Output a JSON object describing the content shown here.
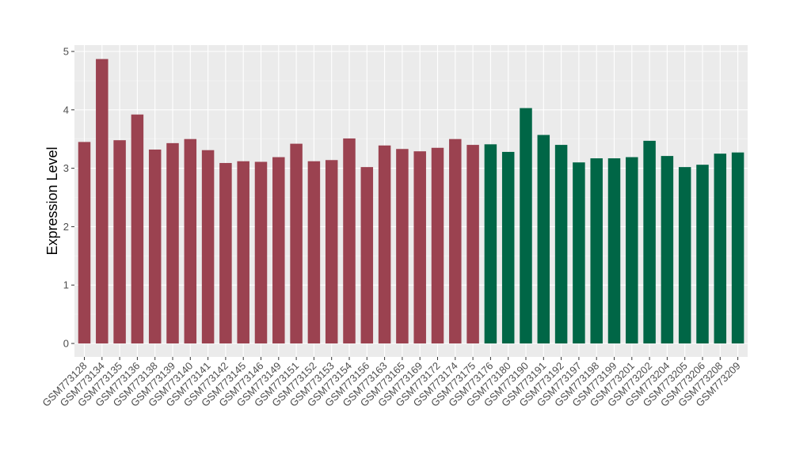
{
  "chart_data": {
    "type": "bar",
    "title": "",
    "xlabel": "",
    "ylabel": "Expression Level",
    "ylim": [
      0,
      5
    ],
    "yticks": [
      0,
      1,
      2,
      3,
      4,
      5
    ],
    "grid": true,
    "legend": "none",
    "categories": [
      "GSM773128",
      "GSM773134",
      "GSM773135",
      "GSM773136",
      "GSM773138",
      "GSM773139",
      "GSM773140",
      "GSM773141",
      "GSM773142",
      "GSM773145",
      "GSM773146",
      "GSM773149",
      "GSM773151",
      "GSM773152",
      "GSM773153",
      "GSM773154",
      "GSM773156",
      "GSM773163",
      "GSM773165",
      "GSM773169",
      "GSM773172",
      "GSM773174",
      "GSM773175",
      "GSM773176",
      "GSM773180",
      "GSM773190",
      "GSM773191",
      "GSM773192",
      "GSM773197",
      "GSM773198",
      "GSM773199",
      "GSM773201",
      "GSM773202",
      "GSM773204",
      "GSM773205",
      "GSM773206",
      "GSM773208",
      "GSM773209"
    ],
    "values": [
      3.45,
      4.87,
      3.48,
      3.92,
      3.32,
      3.43,
      3.5,
      3.31,
      3.09,
      3.12,
      3.11,
      3.19,
      3.42,
      3.12,
      3.14,
      3.51,
      3.02,
      3.39,
      3.33,
      3.29,
      3.35,
      3.5,
      3.4,
      3.41,
      3.28,
      4.03,
      3.57,
      3.4,
      3.1,
      3.17,
      3.17,
      3.19,
      3.47,
      3.21,
      3.02,
      3.06,
      3.25,
      3.27
    ],
    "group_sizes": [
      23,
      15
    ],
    "colors": {
      "group_1": "#9b4250",
      "group_2": "#006646",
      "panel_bg": "#ebebeb",
      "grid_major": "#ffffff",
      "grid_minor": "#f5f5f5"
    }
  }
}
